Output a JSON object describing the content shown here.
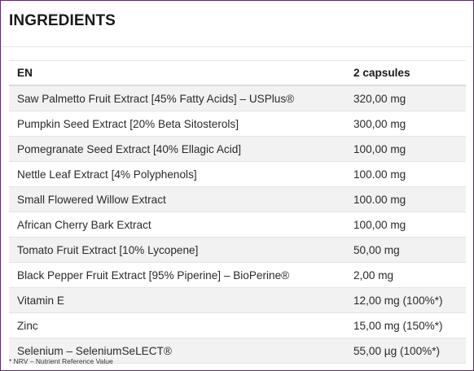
{
  "section": {
    "title": "INGREDIENTS"
  },
  "table": {
    "headers": [
      "EN",
      "2 capsules"
    ],
    "rows": [
      {
        "name": "Saw Palmetto Fruit Extract [45% Fatty Acids] – USPlus®",
        "amount": "320,00 mg"
      },
      {
        "name": "Pumpkin Seed Extract [20% Beta Sitosterols]",
        "amount": "300,00 mg"
      },
      {
        "name": "Pomegranate Seed Extract [40% Ellagic Acid]",
        "amount": "100,00 mg"
      },
      {
        "name": "Nettle Leaf Extract [4% Polyphenols]",
        "amount": "100.00 mg"
      },
      {
        "name": "Small Flowered Willow Extract",
        "amount": "100.00 mg"
      },
      {
        "name": "African Cherry Bark Extract",
        "amount": "100,00 mg"
      },
      {
        "name": "Tomato Fruit Extract [10% Lycopene]",
        "amount": "50,00 mg"
      },
      {
        "name": "Black Pepper Fruit Extract [95% Piperine] – BioPerine®",
        "amount": "2,00 mg"
      },
      {
        "name": "Vitamin E",
        "amount": "12,00 mg (100%*)"
      },
      {
        "name": "Zinc",
        "amount": "15,00 mg (150%*)"
      },
      {
        "name": "Selenium – SeleniumSeLECT®",
        "amount": "55,00 µg (100%*)"
      }
    ]
  },
  "footnote": "* NRV – Nutrient Reference Value"
}
